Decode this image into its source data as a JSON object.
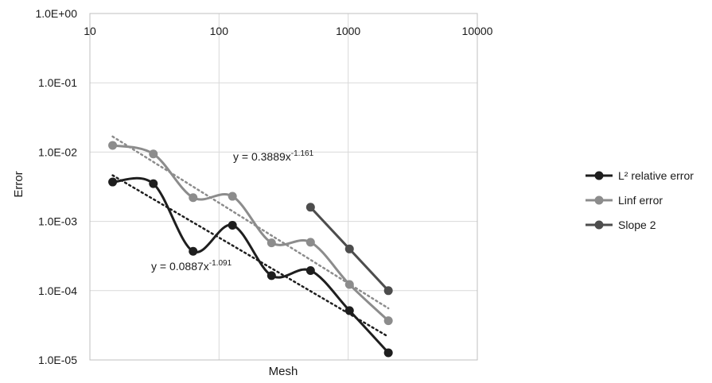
{
  "chart_data": {
    "type": "line",
    "title": "",
    "xlabel": "Mesh",
    "ylabel": "Error",
    "x_scale": "log",
    "y_scale": "log",
    "xlim": [
      10,
      10000
    ],
    "ylim": [
      1e-05,
      1
    ],
    "x_ticks": [
      {
        "value": 10,
        "label": "10"
      },
      {
        "value": 100,
        "label": "100"
      },
      {
        "value": 1000,
        "label": "1000"
      },
      {
        "value": 10000,
        "label": "10000"
      }
    ],
    "y_ticks": [
      {
        "value": 1,
        "label": "1.0E+00"
      },
      {
        "value": 0.1,
        "label": "1.0E-01"
      },
      {
        "value": 0.01,
        "label": "1.0E-02"
      },
      {
        "value": 0.001,
        "label": "1.0E-03"
      },
      {
        "value": 0.0001,
        "label": "1.0E-04"
      },
      {
        "value": 1e-05,
        "label": "1.0E-05"
      }
    ],
    "grid": true,
    "legend_position": "right",
    "series": [
      {
        "name": "L² relative error",
        "color": "#1e1e1e",
        "x": [
          15,
          31,
          63,
          127,
          255,
          511,
          1023,
          2047
        ],
        "y": [
          0.0037,
          0.0035,
          0.00037,
          0.00088,
          0.000165,
          0.000195,
          5.15e-05,
          1.27e-05
        ]
      },
      {
        "name": "Linf error",
        "color": "#8c8c8c",
        "x": [
          15,
          31,
          63,
          127,
          255,
          511,
          1023,
          2047
        ],
        "y": [
          0.0125,
          0.0094,
          0.0022,
          0.0023,
          0.00049,
          0.0005,
          0.000123,
          3.68e-05
        ]
      },
      {
        "name": "Slope 2",
        "color": "#4d4d4d",
        "x": [
          511,
          1023,
          2047
        ],
        "y": [
          0.0016,
          0.0004,
          0.0001
        ]
      }
    ],
    "trendlines": [
      {
        "series": "L² relative error",
        "color": "#1e1e1e",
        "a": 0.0887,
        "b": -1.091,
        "x_range": [
          15,
          2047
        ],
        "eq_prefix": "y = 0.0887x",
        "eq_exp": "-1.091"
      },
      {
        "series": "Linf error",
        "color": "#8c8c8c",
        "a": 0.3889,
        "b": -1.161,
        "x_range": [
          15,
          2047
        ],
        "eq_prefix": "y = 0.3889x",
        "eq_exp": "-1.161"
      }
    ]
  }
}
